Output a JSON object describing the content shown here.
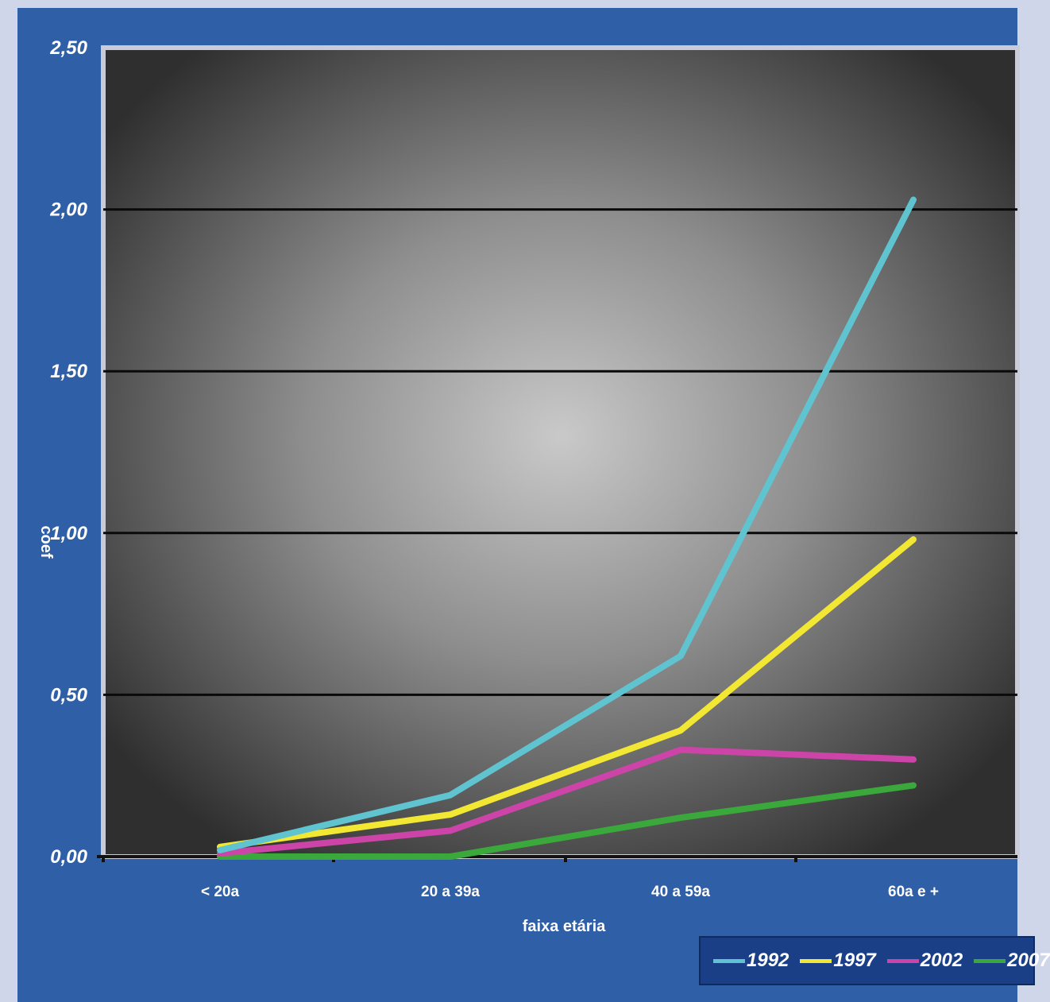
{
  "chart_data": {
    "type": "line",
    "xlabel": "faixa etária",
    "ylabel": "coef",
    "categories": [
      "< 20a",
      "20 a 39a",
      "40 a 59a",
      "60a e +"
    ],
    "y_ticks": [
      "0,00",
      "0,50",
      "1,00",
      "1,50",
      "2,00",
      "2,50"
    ],
    "ylim": [
      0,
      2.5
    ],
    "grid": true,
    "legend_position": "bottom-right",
    "series": [
      {
        "name": "1992",
        "color": "#5fc4cf",
        "values": [
          0.02,
          0.19,
          0.62,
          2.03
        ]
      },
      {
        "name": "1997",
        "color": "#f2e833",
        "values": [
          0.03,
          0.13,
          0.39,
          0.98
        ]
      },
      {
        "name": "2002",
        "color": "#cc44a8",
        "values": [
          0.01,
          0.08,
          0.33,
          0.3
        ]
      },
      {
        "name": "2007",
        "color": "#3aa83a",
        "values": [
          0.0,
          0.0,
          0.12,
          0.22
        ]
      }
    ]
  }
}
